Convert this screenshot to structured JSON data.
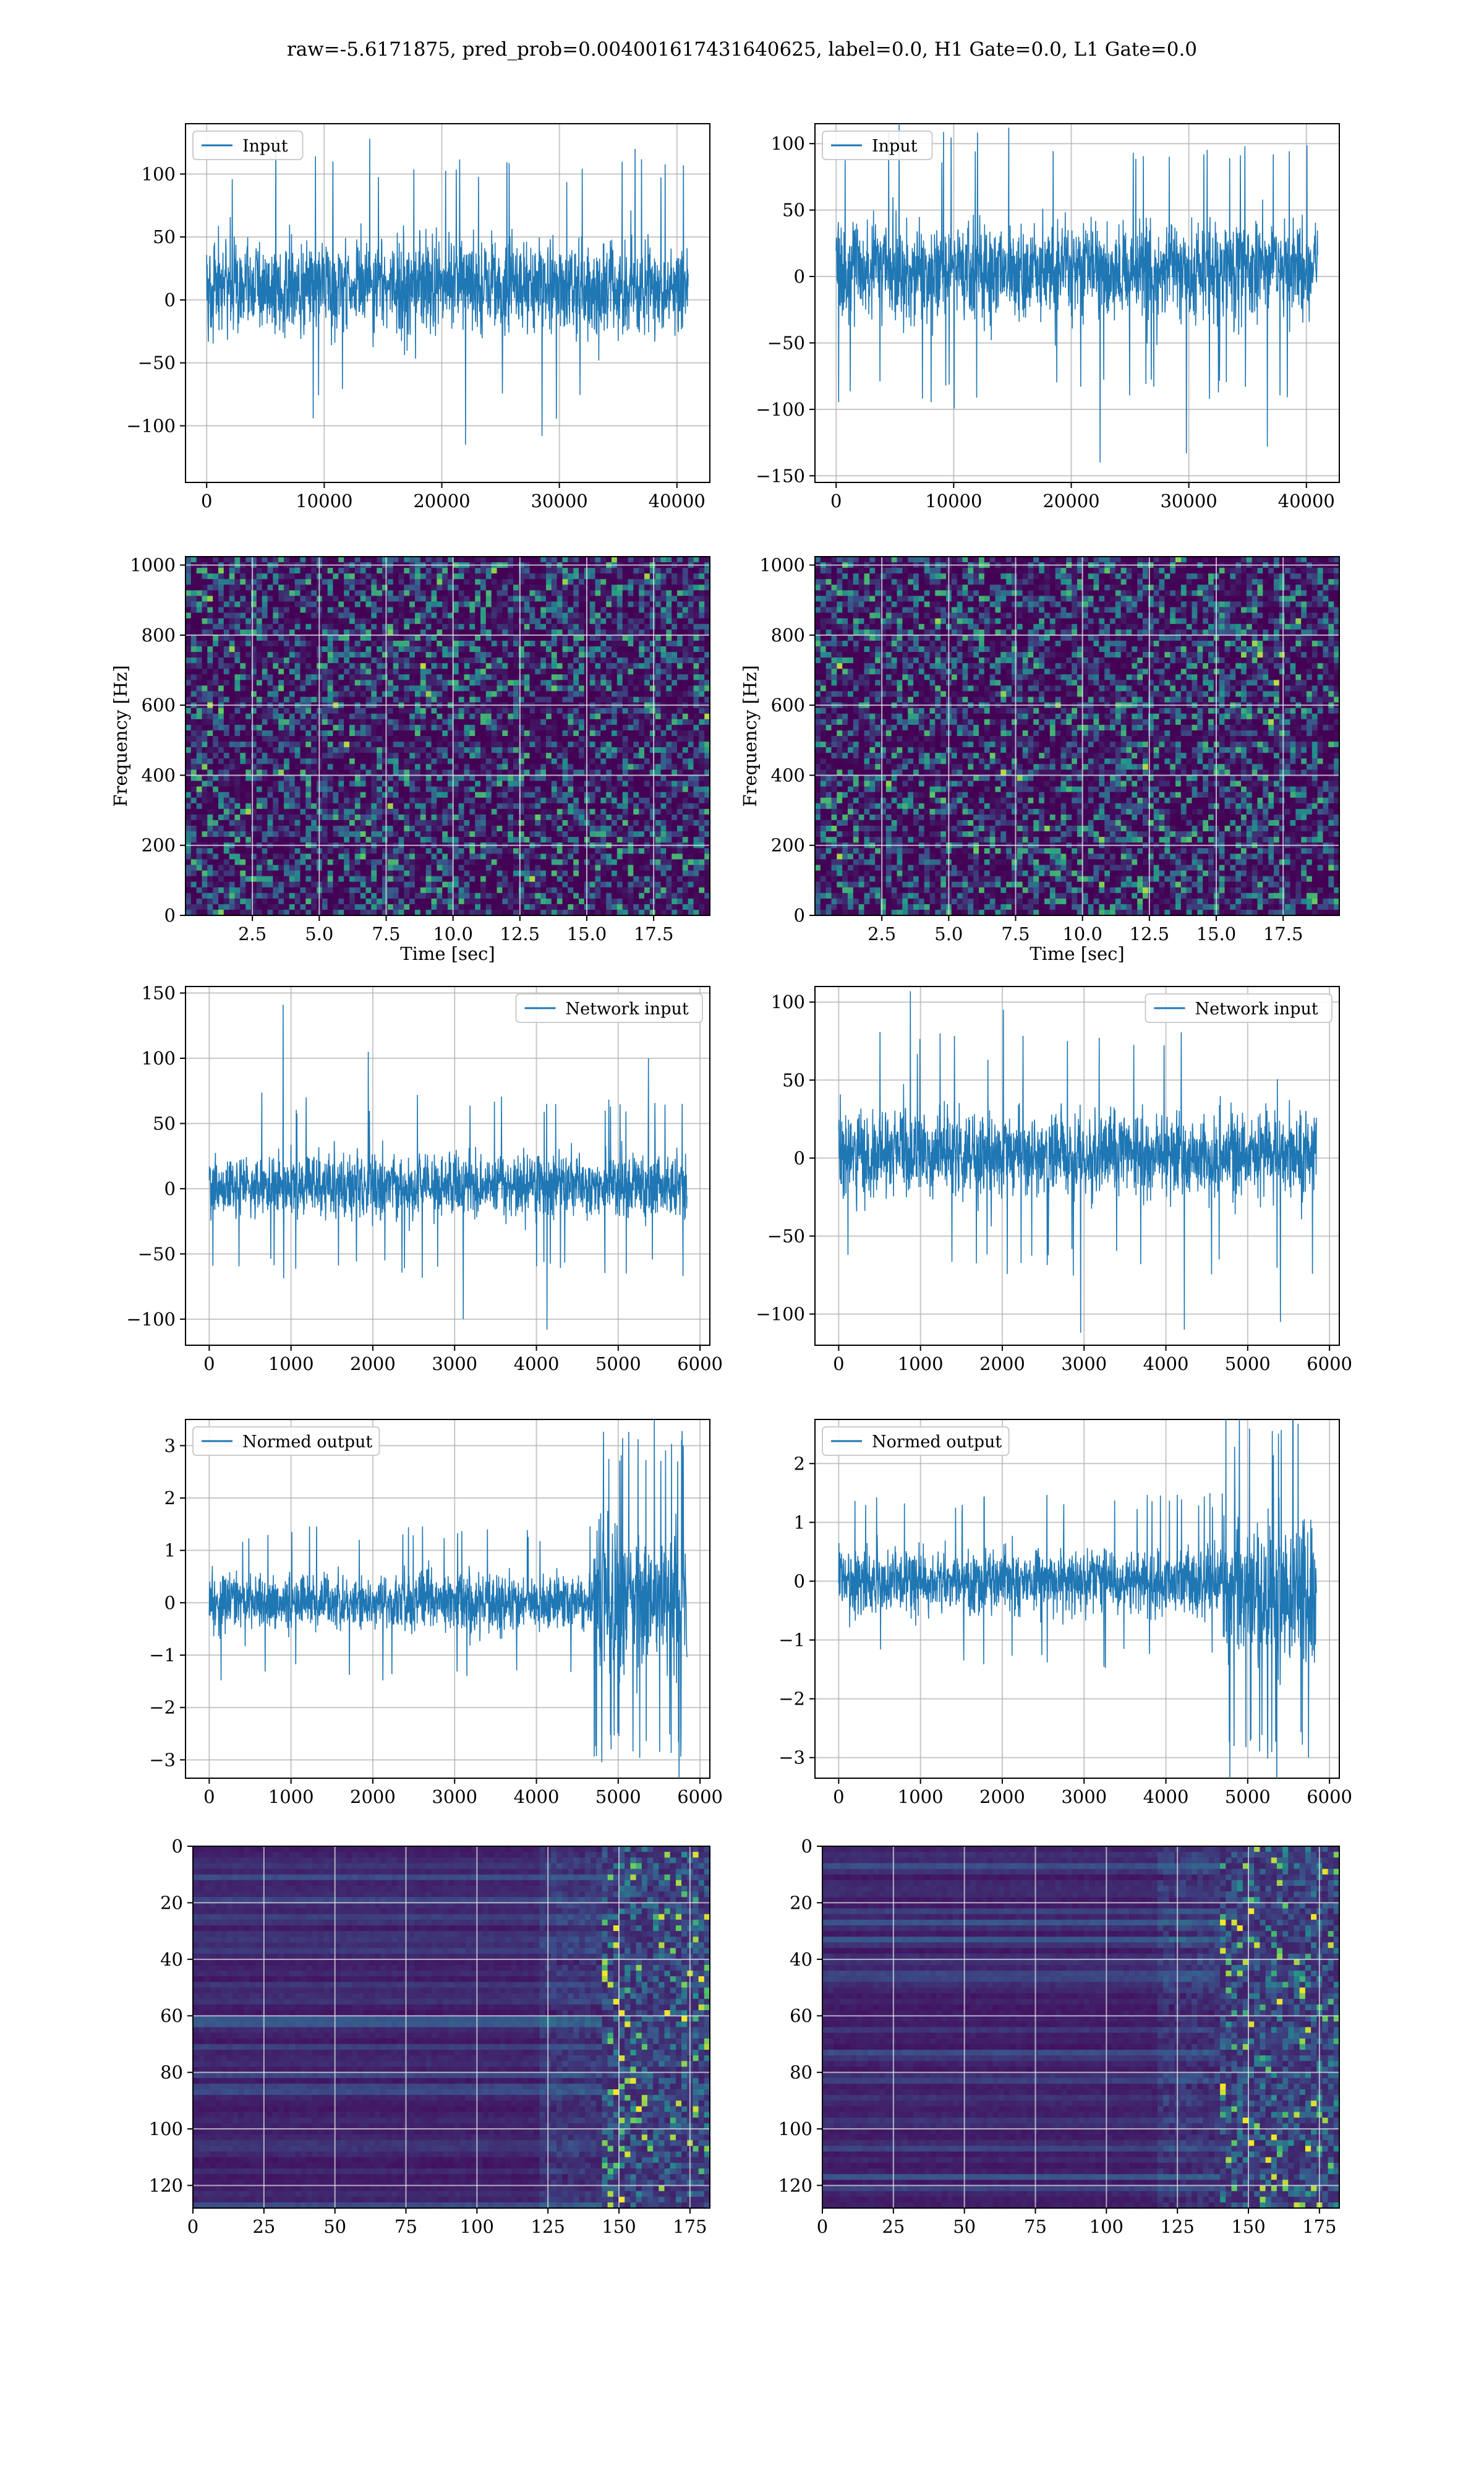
{
  "figure": {
    "title": "raw=-5.6171875, pred_prob=0.004001617431640625, label=0.0, H1 Gate=0.0, L1 Gate=0.0"
  },
  "colors": {
    "line": "#1f77b4",
    "grid": "#b0b0b0",
    "viridis_low": "#440154",
    "viridis_mid": "#3b528b",
    "viridis_teal": "#21918c",
    "viridis_green": "#5ec962",
    "viridis_high": "#fde725"
  },
  "chart_data": [
    {
      "type": "line",
      "row": 0,
      "col": 0,
      "legend": "Input",
      "legend_loc": "upper left",
      "xlim": [
        -1800,
        42800
      ],
      "ylim": [
        -145,
        140
      ],
      "xticks": [
        0,
        10000,
        20000,
        30000,
        40000
      ],
      "xtick_labels": [
        "0",
        "10000",
        "20000",
        "30000",
        "40000"
      ],
      "yticks": [
        -100,
        -50,
        0,
        50,
        100
      ],
      "ytick_labels": [
        "−100",
        "−50",
        "0",
        "50",
        "100"
      ],
      "xlabel": "",
      "ylabel": "",
      "grid": true,
      "x_range": [
        0,
        40960
      ],
      "envelope": {
        "typical_max": 80,
        "typical_min": -60,
        "peaks": [
          130,
          128,
          -115,
          -108,
          120
        ]
      }
    },
    {
      "type": "line",
      "row": 0,
      "col": 1,
      "legend": "Input",
      "legend_loc": "upper left",
      "xlim": [
        -1800,
        42800
      ],
      "ylim": [
        -155,
        115
      ],
      "xticks": [
        0,
        10000,
        20000,
        30000,
        40000
      ],
      "xtick_labels": [
        "0",
        "10000",
        "20000",
        "30000",
        "40000"
      ],
      "yticks": [
        -150,
        -100,
        -50,
        0,
        50,
        100
      ],
      "ytick_labels": [
        "−150",
        "−100",
        "−50",
        "0",
        "50",
        "100"
      ],
      "xlabel": "",
      "ylabel": "",
      "grid": true,
      "x_range": [
        0,
        40960
      ],
      "envelope": {
        "typical_max": 75,
        "typical_min": -65,
        "peaks": [
          115,
          112,
          -140,
          -133,
          -128
        ]
      }
    },
    {
      "type": "heatmap",
      "row": 1,
      "col": 0,
      "xlim": [
        0,
        19.6
      ],
      "ylim": [
        0,
        1024
      ],
      "xticks": [
        2.5,
        5.0,
        7.5,
        10.0,
        12.5,
        15.0,
        17.5
      ],
      "xtick_labels": [
        "2.5",
        "5.0",
        "7.5",
        "10.0",
        "12.5",
        "15.0",
        "17.5"
      ],
      "yticks": [
        0,
        200,
        400,
        600,
        800,
        1000
      ],
      "ytick_labels": [
        "0",
        "200",
        "400",
        "600",
        "800",
        "1000"
      ],
      "xlabel": "Time [sec]",
      "ylabel": "Frequency [Hz]",
      "grid": true,
      "colormap": "viridis"
    },
    {
      "type": "heatmap",
      "row": 1,
      "col": 1,
      "xlim": [
        0,
        19.6
      ],
      "ylim": [
        0,
        1024
      ],
      "xticks": [
        2.5,
        5.0,
        7.5,
        10.0,
        12.5,
        15.0,
        17.5
      ],
      "xtick_labels": [
        "2.5",
        "5.0",
        "7.5",
        "10.0",
        "12.5",
        "15.0",
        "17.5"
      ],
      "yticks": [
        0,
        200,
        400,
        600,
        800,
        1000
      ],
      "ytick_labels": [
        "0",
        "200",
        "400",
        "600",
        "800",
        "1000"
      ],
      "xlabel": "Time [sec]",
      "ylabel": "Frequency [Hz]",
      "grid": true,
      "colormap": "viridis"
    },
    {
      "type": "line",
      "row": 2,
      "col": 0,
      "legend": "Network input",
      "legend_loc": "upper right",
      "xlim": [
        -290,
        6120
      ],
      "ylim": [
        -120,
        155
      ],
      "xticks": [
        0,
        1000,
        2000,
        3000,
        4000,
        5000,
        6000
      ],
      "xtick_labels": [
        "0",
        "1000",
        "2000",
        "3000",
        "4000",
        "5000",
        "6000"
      ],
      "yticks": [
        -100,
        -50,
        0,
        50,
        100,
        150
      ],
      "ytick_labels": [
        "−100",
        "−50",
        "0",
        "50",
        "100",
        "150"
      ],
      "xlabel": "",
      "ylabel": "",
      "grid": true,
      "x_range": [
        0,
        5840
      ],
      "envelope": {
        "typical_max": 50,
        "typical_min": -45,
        "peaks": [
          141,
          105,
          -100,
          -108,
          100
        ]
      }
    },
    {
      "type": "line",
      "row": 2,
      "col": 1,
      "legend": "Network input",
      "legend_loc": "upper right",
      "xlim": [
        -290,
        6120
      ],
      "ylim": [
        -120,
        110
      ],
      "xticks": [
        0,
        1000,
        2000,
        3000,
        4000,
        5000,
        6000
      ],
      "xtick_labels": [
        "0",
        "1000",
        "2000",
        "3000",
        "4000",
        "5000",
        "6000"
      ],
      "yticks": [
        -100,
        -50,
        0,
        50,
        100
      ],
      "ytick_labels": [
        "−100",
        "−50",
        "0",
        "50",
        "100"
      ],
      "xlabel": "",
      "ylabel": "",
      "grid": true,
      "x_range": [
        0,
        5840
      ],
      "envelope": {
        "typical_max": 55,
        "typical_min": -50,
        "peaks": [
          107,
          95,
          -112,
          -110,
          -105
        ]
      }
    },
    {
      "type": "line",
      "row": 3,
      "col": 0,
      "legend": "Normed output",
      "legend_loc": "upper left",
      "xlim": [
        -290,
        6120
      ],
      "ylim": [
        -3.35,
        3.5
      ],
      "xticks": [
        0,
        1000,
        2000,
        3000,
        4000,
        5000,
        6000
      ],
      "xtick_labels": [
        "0",
        "1000",
        "2000",
        "3000",
        "4000",
        "5000",
        "6000"
      ],
      "yticks": [
        -3,
        -2,
        -1,
        0,
        1,
        2,
        3
      ],
      "ytick_labels": [
        "−3",
        "−2",
        "−1",
        "0",
        "1",
        "2",
        "3"
      ],
      "xlabel": "",
      "ylabel": "",
      "grid": true,
      "x_range": [
        0,
        5840
      ],
      "envelope": {
        "typical_max": 1.0,
        "typical_min": -1.0,
        "burst_start": 4700,
        "burst_max": 3.3,
        "burst_min": -3.1
      }
    },
    {
      "type": "line",
      "row": 3,
      "col": 1,
      "legend": "Normed output",
      "legend_loc": "upper left",
      "xlim": [
        -290,
        6120
      ],
      "ylim": [
        -3.35,
        2.75
      ],
      "xticks": [
        0,
        1000,
        2000,
        3000,
        4000,
        5000,
        6000
      ],
      "xtick_labels": [
        "0",
        "1000",
        "2000",
        "3000",
        "4000",
        "5000",
        "6000"
      ],
      "yticks": [
        -3,
        -2,
        -1,
        0,
        1,
        2
      ],
      "ytick_labels": [
        "−3",
        "−2",
        "−1",
        "0",
        "1",
        "2"
      ],
      "xlabel": "",
      "ylabel": "",
      "grid": true,
      "x_range": [
        0,
        5840
      ],
      "envelope": {
        "typical_max": 1.0,
        "typical_min": -1.0,
        "burst_start": 4700,
        "burst_max": 2.6,
        "burst_min": -3.2
      }
    },
    {
      "type": "heatmap",
      "row": 4,
      "col": 0,
      "xlim": [
        0,
        182
      ],
      "ylim": [
        128,
        0
      ],
      "xticks": [
        0,
        25,
        50,
        75,
        100,
        125,
        150,
        175
      ],
      "xtick_labels": [
        "0",
        "25",
        "50",
        "75",
        "100",
        "125",
        "150",
        "175"
      ],
      "yticks": [
        0,
        20,
        40,
        60,
        80,
        100,
        120
      ],
      "ytick_labels": [
        "0",
        "20",
        "40",
        "60",
        "80",
        "100",
        "120"
      ],
      "xlabel": "",
      "ylabel": "",
      "grid": true,
      "colormap": "viridis",
      "active_from_x": 145
    },
    {
      "type": "heatmap",
      "row": 4,
      "col": 1,
      "xlim": [
        0,
        182
      ],
      "ylim": [
        128,
        0
      ],
      "xticks": [
        0,
        25,
        50,
        75,
        100,
        125,
        150,
        175
      ],
      "xtick_labels": [
        "0",
        "25",
        "50",
        "75",
        "100",
        "125",
        "150",
        "175"
      ],
      "yticks": [
        0,
        20,
        40,
        60,
        80,
        100,
        120
      ],
      "ytick_labels": [
        "0",
        "20",
        "40",
        "60",
        "80",
        "100",
        "120"
      ],
      "xlabel": "",
      "ylabel": "",
      "grid": true,
      "colormap": "viridis",
      "active_from_x": 140
    }
  ]
}
